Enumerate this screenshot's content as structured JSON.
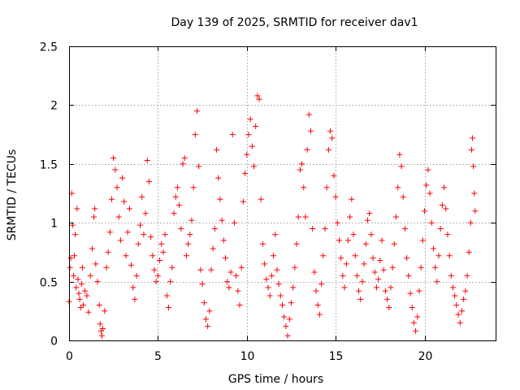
{
  "chart_data": {
    "type": "scatter",
    "title": "Day 139 of 2025, SRMTID for receiver dav1",
    "xlabel": "GPS time / hours",
    "ylabel": "SRMTID / TECUs",
    "xlim": [
      0,
      24
    ],
    "ylim": [
      0,
      2.5
    ],
    "x_ticks": [
      0,
      5,
      10,
      15,
      20
    ],
    "x_tick_labels": [
      "0",
      "5",
      "10",
      "15",
      "20"
    ],
    "y_ticks": [
      0,
      0.5,
      1,
      1.5,
      2,
      2.5
    ],
    "y_tick_labels": [
      "0",
      "0.5",
      "1",
      "1.5",
      "2",
      "2.5"
    ],
    "grid": true,
    "marker": "plus",
    "series": [
      {
        "name": "SRMTID",
        "color": "#ff0000",
        "points": [
          [
            0.0,
            0.33
          ],
          [
            0.05,
            0.62
          ],
          [
            0.1,
            0.7
          ],
          [
            0.15,
            1.25
          ],
          [
            0.2,
            0.98
          ],
          [
            0.25,
            0.55
          ],
          [
            0.3,
            0.72
          ],
          [
            0.35,
            0.9
          ],
          [
            0.4,
            0.45
          ],
          [
            0.45,
            1.12
          ],
          [
            0.5,
            0.52
          ],
          [
            0.55,
            0.4
          ],
          [
            0.6,
            0.35
          ],
          [
            0.65,
            0.28
          ],
          [
            0.7,
            0.48
          ],
          [
            0.75,
            0.62
          ],
          [
            0.8,
            0.3
          ],
          [
            0.9,
            0.42
          ],
          [
            1.0,
            0.38
          ],
          [
            1.1,
            0.24
          ],
          [
            1.2,
            0.55
          ],
          [
            1.3,
            0.78
          ],
          [
            1.4,
            1.05
          ],
          [
            1.45,
            1.12
          ],
          [
            1.5,
            0.65
          ],
          [
            1.6,
            0.5
          ],
          [
            1.7,
            0.3
          ],
          [
            1.75,
            0.14
          ],
          [
            1.8,
            0.08
          ],
          [
            1.85,
            0.04
          ],
          [
            1.9,
            0.1
          ],
          [
            2.0,
            0.25
          ],
          [
            2.1,
            0.62
          ],
          [
            2.2,
            0.75
          ],
          [
            2.3,
            0.92
          ],
          [
            2.4,
            1.2
          ],
          [
            2.5,
            1.55
          ],
          [
            2.6,
            1.45
          ],
          [
            2.7,
            1.3
          ],
          [
            2.8,
            1.05
          ],
          [
            2.9,
            0.85
          ],
          [
            3.0,
            1.38
          ],
          [
            3.1,
            1.18
          ],
          [
            3.2,
            0.72
          ],
          [
            3.3,
            0.92
          ],
          [
            3.4,
            1.12
          ],
          [
            3.5,
            0.64
          ],
          [
            3.6,
            0.45
          ],
          [
            3.7,
            0.35
          ],
          [
            3.8,
            0.55
          ],
          [
            3.9,
            0.82
          ],
          [
            4.0,
            0.98
          ],
          [
            4.1,
            1.22
          ],
          [
            4.2,
            0.9
          ],
          [
            4.3,
            1.08
          ],
          [
            4.4,
            1.53
          ],
          [
            4.5,
            1.35
          ],
          [
            4.6,
            0.88
          ],
          [
            4.7,
            0.72
          ],
          [
            4.8,
            0.6
          ],
          [
            4.9,
            0.5
          ],
          [
            5.0,
            0.55
          ],
          [
            5.1,
            0.68
          ],
          [
            5.2,
            0.82
          ],
          [
            5.3,
            0.75
          ],
          [
            5.4,
            0.9
          ],
          [
            5.5,
            0.38
          ],
          [
            5.6,
            0.28
          ],
          [
            5.7,
            0.5
          ],
          [
            5.8,
            0.62
          ],
          [
            5.9,
            1.08
          ],
          [
            6.0,
            1.22
          ],
          [
            6.1,
            1.3
          ],
          [
            6.2,
            1.15
          ],
          [
            6.3,
            0.95
          ],
          [
            6.4,
            1.5
          ],
          [
            6.5,
            1.55
          ],
          [
            6.6,
            0.72
          ],
          [
            6.7,
            0.82
          ],
          [
            6.8,
            0.9
          ],
          [
            6.9,
            1.02
          ],
          [
            7.0,
            1.3
          ],
          [
            7.1,
            1.75
          ],
          [
            7.2,
            1.95
          ],
          [
            7.3,
            1.48
          ],
          [
            7.4,
            0.6
          ],
          [
            7.5,
            0.48
          ],
          [
            7.6,
            0.32
          ],
          [
            7.7,
            0.18
          ],
          [
            7.8,
            0.12
          ],
          [
            7.9,
            0.25
          ],
          [
            8.0,
            0.6
          ],
          [
            8.1,
            0.78
          ],
          [
            8.2,
            0.95
          ],
          [
            8.3,
            1.62
          ],
          [
            8.4,
            1.38
          ],
          [
            8.5,
            1.2
          ],
          [
            8.6,
            1.02
          ],
          [
            8.7,
            0.85
          ],
          [
            8.8,
            0.7
          ],
          [
            8.9,
            0.5
          ],
          [
            9.0,
            0.45
          ],
          [
            9.1,
            0.58
          ],
          [
            9.2,
            1.75
          ],
          [
            9.3,
            1.0
          ],
          [
            9.4,
            0.55
          ],
          [
            9.5,
            0.42
          ],
          [
            9.6,
            0.3
          ],
          [
            9.7,
            0.62
          ],
          [
            9.8,
            1.18
          ],
          [
            9.9,
            1.42
          ],
          [
            10.0,
            1.58
          ],
          [
            10.1,
            1.75
          ],
          [
            10.2,
            1.88
          ],
          [
            10.3,
            1.65
          ],
          [
            10.4,
            1.48
          ],
          [
            10.5,
            1.82
          ],
          [
            10.6,
            2.08
          ],
          [
            10.7,
            2.05
          ],
          [
            10.8,
            1.2
          ],
          [
            10.9,
            0.82
          ],
          [
            11.0,
            0.65
          ],
          [
            11.1,
            0.52
          ],
          [
            11.2,
            0.45
          ],
          [
            11.3,
            0.38
          ],
          [
            11.4,
            0.55
          ],
          [
            11.5,
            0.72
          ],
          [
            11.6,
            0.9
          ],
          [
            11.7,
            0.6
          ],
          [
            11.8,
            0.48
          ],
          [
            11.9,
            0.38
          ],
          [
            12.0,
            0.3
          ],
          [
            12.1,
            0.2
          ],
          [
            12.2,
            0.12
          ],
          [
            12.3,
            0.04
          ],
          [
            12.4,
            0.18
          ],
          [
            12.5,
            0.32
          ],
          [
            12.6,
            0.45
          ],
          [
            12.7,
            0.62
          ],
          [
            12.8,
            0.82
          ],
          [
            12.9,
            1.05
          ],
          [
            13.0,
            1.45
          ],
          [
            13.1,
            1.5
          ],
          [
            13.2,
            1.3
          ],
          [
            13.3,
            1.05
          ],
          [
            13.4,
            1.62
          ],
          [
            13.5,
            1.92
          ],
          [
            13.6,
            1.78
          ],
          [
            13.7,
            0.95
          ],
          [
            13.8,
            0.58
          ],
          [
            13.9,
            0.42
          ],
          [
            14.0,
            0.3
          ],
          [
            14.1,
            0.22
          ],
          [
            14.2,
            0.48
          ],
          [
            14.3,
            0.72
          ],
          [
            14.4,
            0.95
          ],
          [
            14.5,
            1.3
          ],
          [
            14.6,
            1.62
          ],
          [
            14.7,
            1.78
          ],
          [
            14.8,
            1.72
          ],
          [
            14.9,
            1.4
          ],
          [
            15.0,
            1.22
          ],
          [
            15.1,
            1.0
          ],
          [
            15.2,
            0.85
          ],
          [
            15.3,
            0.7
          ],
          [
            15.4,
            0.55
          ],
          [
            15.5,
            0.45
          ],
          [
            15.6,
            0.65
          ],
          [
            15.7,
            0.85
          ],
          [
            15.8,
            1.05
          ],
          [
            15.9,
            1.2
          ],
          [
            16.0,
            0.9
          ],
          [
            16.1,
            0.72
          ],
          [
            16.2,
            0.55
          ],
          [
            16.3,
            0.42
          ],
          [
            16.4,
            0.35
          ],
          [
            16.5,
            0.5
          ],
          [
            16.6,
            0.65
          ],
          [
            16.7,
            0.82
          ],
          [
            16.8,
            1.02
          ],
          [
            16.9,
            1.08
          ],
          [
            17.0,
            0.9
          ],
          [
            17.1,
            0.7
          ],
          [
            17.2,
            0.58
          ],
          [
            17.3,
            0.45
          ],
          [
            17.4,
            0.52
          ],
          [
            17.5,
            0.68
          ],
          [
            17.6,
            0.85
          ],
          [
            17.7,
            0.6
          ],
          [
            17.8,
            0.42
          ],
          [
            17.9,
            0.35
          ],
          [
            18.0,
            0.28
          ],
          [
            18.1,
            0.45
          ],
          [
            18.2,
            0.62
          ],
          [
            18.3,
            0.82
          ],
          [
            18.4,
            1.05
          ],
          [
            18.5,
            1.3
          ],
          [
            18.6,
            1.58
          ],
          [
            18.7,
            1.48
          ],
          [
            18.8,
            1.22
          ],
          [
            18.9,
            0.95
          ],
          [
            19.0,
            0.7
          ],
          [
            19.1,
            0.55
          ],
          [
            19.2,
            0.4
          ],
          [
            19.3,
            0.28
          ],
          [
            19.4,
            0.15
          ],
          [
            19.5,
            0.08
          ],
          [
            19.6,
            0.2
          ],
          [
            19.7,
            0.42
          ],
          [
            19.8,
            0.62
          ],
          [
            19.9,
            0.85
          ],
          [
            20.0,
            1.1
          ],
          [
            20.1,
            1.32
          ],
          [
            20.2,
            1.45
          ],
          [
            20.3,
            1.25
          ],
          [
            20.4,
            1.0
          ],
          [
            20.5,
            0.78
          ],
          [
            20.6,
            0.62
          ],
          [
            20.7,
            0.5
          ],
          [
            20.8,
            0.72
          ],
          [
            20.9,
            0.95
          ],
          [
            21.0,
            1.15
          ],
          [
            21.1,
            1.3
          ],
          [
            21.2,
            1.12
          ],
          [
            21.3,
            0.9
          ],
          [
            21.4,
            0.72
          ],
          [
            21.5,
            0.55
          ],
          [
            21.6,
            0.45
          ],
          [
            21.7,
            0.38
          ],
          [
            21.8,
            0.3
          ],
          [
            21.9,
            0.22
          ],
          [
            22.0,
            0.15
          ],
          [
            22.1,
            0.25
          ],
          [
            22.2,
            0.35
          ],
          [
            22.3,
            0.42
          ],
          [
            22.4,
            0.55
          ],
          [
            22.5,
            0.75
          ],
          [
            22.6,
            1.0
          ],
          [
            22.65,
            1.62
          ],
          [
            22.7,
            1.72
          ],
          [
            22.75,
            1.48
          ],
          [
            22.8,
            1.25
          ],
          [
            22.85,
            1.1
          ]
        ]
      }
    ]
  }
}
